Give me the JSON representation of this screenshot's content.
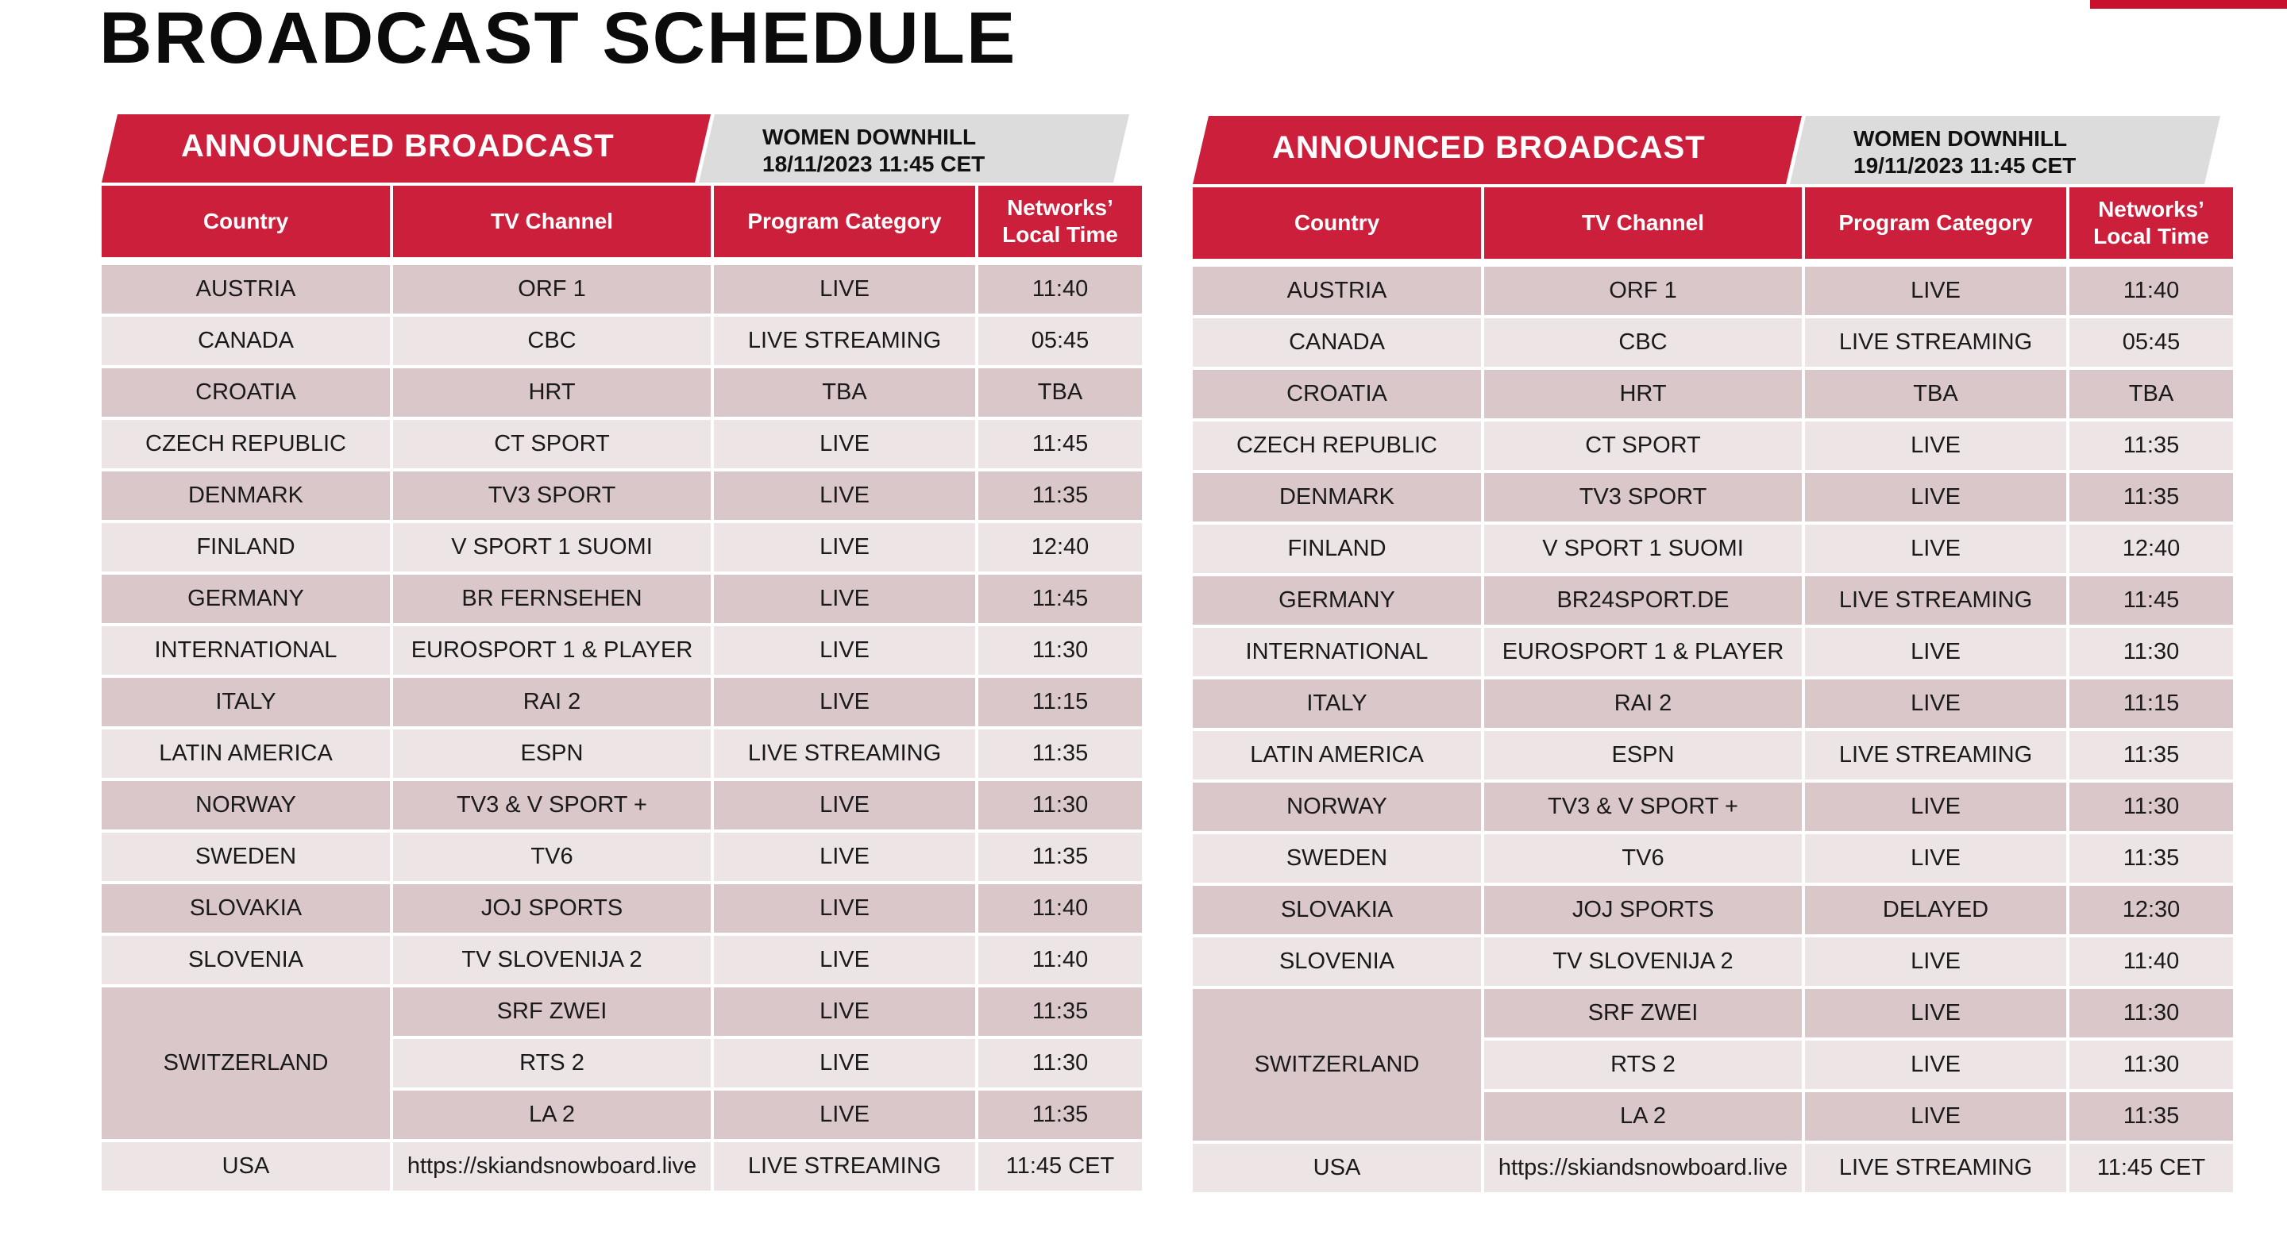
{
  "page": {
    "title": "BROADCAST SCHEDULE",
    "accent_color": "#cc1f3b"
  },
  "columns": {
    "country": "Country",
    "channel": "TV Channel",
    "category": "Program Category",
    "time_line1": "Networks’",
    "time_line2": "Local Time"
  },
  "schedules": [
    {
      "banner": "ANNOUNCED BROADCAST",
      "event": "WOMEN DOWNHILL",
      "datetime": "18/11/2023 11:45 CET",
      "rows": [
        {
          "country": "AUSTRIA",
          "channel": "ORF 1",
          "category": "LIVE",
          "time": "11:40"
        },
        {
          "country": "CANADA",
          "channel": "CBC",
          "category": "LIVE STREAMING",
          "time": "05:45"
        },
        {
          "country": "CROATIA",
          "channel": "HRT",
          "category": "TBA",
          "time": "TBA"
        },
        {
          "country": "CZECH REPUBLIC",
          "channel": "CT SPORT",
          "category": "LIVE",
          "time": "11:45"
        },
        {
          "country": "DENMARK",
          "channel": "TV3 SPORT",
          "category": "LIVE",
          "time": "11:35"
        },
        {
          "country": "FINLAND",
          "channel": "V SPORT 1 SUOMI",
          "category": "LIVE",
          "time": "12:40"
        },
        {
          "country": "GERMANY",
          "channel": "BR FERNSEHEN",
          "category": "LIVE",
          "time": "11:45"
        },
        {
          "country": "INTERNATIONAL",
          "channel": "EUROSPORT 1 & PLAYER",
          "category": "LIVE",
          "time": "11:30"
        },
        {
          "country": "ITALY",
          "channel": "RAI 2",
          "category": "LIVE",
          "time": "11:15"
        },
        {
          "country": "LATIN AMERICA",
          "channel": "ESPN",
          "category": "LIVE STREAMING",
          "time": "11:35"
        },
        {
          "country": "NORWAY",
          "channel": "TV3 & V SPORT +",
          "category": "LIVE",
          "time": "11:30"
        },
        {
          "country": "SWEDEN",
          "channel": "TV6",
          "category": "LIVE",
          "time": "11:35"
        },
        {
          "country": "SLOVAKIA",
          "channel": "JOJ SPORTS",
          "category": "LIVE",
          "time": "11:40"
        },
        {
          "country": "SLOVENIA",
          "channel": "TV SLOVENIJA 2",
          "category": "LIVE",
          "time": "11:40"
        }
      ],
      "switzerland": {
        "country": "SWITZERLAND",
        "rows": [
          {
            "channel": "SRF ZWEI",
            "category": "LIVE",
            "time": "11:35"
          },
          {
            "channel": "RTS 2",
            "category": "LIVE",
            "time": "11:30"
          },
          {
            "channel": "LA 2",
            "category": "LIVE",
            "time": "11:35"
          }
        ]
      },
      "usa": {
        "country": "USA",
        "channel": "https://skiandsnowboard.live",
        "category": "LIVE STREAMING",
        "time": "11:45 CET"
      }
    },
    {
      "banner": "ANNOUNCED BROADCAST",
      "event": "WOMEN DOWNHILL",
      "datetime": "19/11/2023 11:45 CET",
      "rows": [
        {
          "country": "AUSTRIA",
          "channel": "ORF 1",
          "category": "LIVE",
          "time": "11:40"
        },
        {
          "country": "CANADA",
          "channel": "CBC",
          "category": "LIVE STREAMING",
          "time": "05:45"
        },
        {
          "country": "CROATIA",
          "channel": "HRT",
          "category": "TBA",
          "time": "TBA"
        },
        {
          "country": "CZECH REPUBLIC",
          "channel": "CT SPORT",
          "category": "LIVE",
          "time": "11:35"
        },
        {
          "country": "DENMARK",
          "channel": "TV3 SPORT",
          "category": "LIVE",
          "time": "11:35"
        },
        {
          "country": "FINLAND",
          "channel": "V SPORT 1 SUOMI",
          "category": "LIVE",
          "time": "12:40"
        },
        {
          "country": "GERMANY",
          "channel": "BR24SPORT.DE",
          "category": "LIVE STREAMING",
          "time": "11:45"
        },
        {
          "country": "INTERNATIONAL",
          "channel": "EUROSPORT 1 & PLAYER",
          "category": "LIVE",
          "time": "11:30"
        },
        {
          "country": "ITALY",
          "channel": "RAI 2",
          "category": "LIVE",
          "time": "11:15"
        },
        {
          "country": "LATIN AMERICA",
          "channel": "ESPN",
          "category": "LIVE STREAMING",
          "time": "11:35"
        },
        {
          "country": "NORWAY",
          "channel": "TV3 & V SPORT +",
          "category": "LIVE",
          "time": "11:30"
        },
        {
          "country": "SWEDEN",
          "channel": "TV6",
          "category": "LIVE",
          "time": "11:35"
        },
        {
          "country": "SLOVAKIA",
          "channel": "JOJ SPORTS",
          "category": "DELAYED",
          "time": "12:30"
        },
        {
          "country": "SLOVENIA",
          "channel": "TV SLOVENIJA 2",
          "category": "LIVE",
          "time": "11:40"
        }
      ],
      "switzerland": {
        "country": "SWITZERLAND",
        "rows": [
          {
            "channel": "SRF ZWEI",
            "category": "LIVE",
            "time": "11:30"
          },
          {
            "channel": "RTS 2",
            "category": "LIVE",
            "time": "11:30"
          },
          {
            "channel": "LA 2",
            "category": "LIVE",
            "time": "11:35"
          }
        ]
      },
      "usa": {
        "country": "USA",
        "channel": "https://skiandsnowboard.live",
        "category": "LIVE STREAMING",
        "time": "11:45 CET"
      }
    }
  ]
}
